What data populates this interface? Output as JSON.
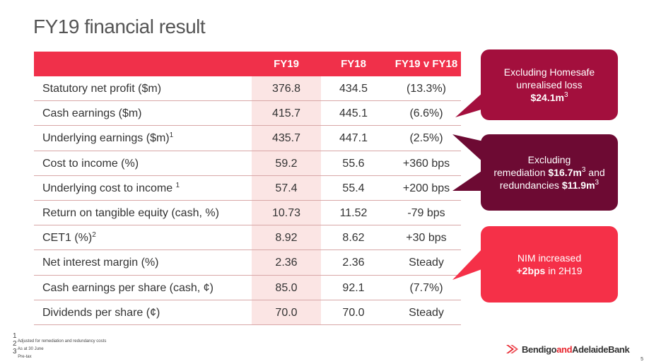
{
  "title": "FY19 financial result",
  "table": {
    "headers": [
      "",
      "FY19",
      "FY18",
      "FY19 v FY18"
    ],
    "rows": [
      {
        "label": "Statutory net profit ($m)",
        "sup": "",
        "fy19": "376.8",
        "fy18": "434.5",
        "change": "(13.3%)"
      },
      {
        "label": "Cash earnings ($m)",
        "sup": "",
        "fy19": "415.7",
        "fy18": "445.1",
        "change": "(6.6%)"
      },
      {
        "label": "Underlying earnings ($m)",
        "sup": "1",
        "fy19": "435.7",
        "fy18": "447.1",
        "change": "(2.5%)"
      },
      {
        "label": "Cost to income (%)",
        "sup": "",
        "fy19": "59.2",
        "fy18": "55.6",
        "change": "+360 bps"
      },
      {
        "label": "Underlying cost to income ",
        "sup": "1",
        "fy19": "57.4",
        "fy18": "55.4",
        "change": "+200 bps"
      },
      {
        "label": "Return on tangible equity (cash, %)",
        "sup": "",
        "fy19": "10.73",
        "fy18": "11.52",
        "change": "-79 bps"
      },
      {
        "label": "CET1 (%)",
        "sup": "2",
        "fy19": "8.92",
        "fy18": "8.62",
        "change": "+30 bps"
      },
      {
        "label": "Net interest margin (%)",
        "sup": "",
        "fy19": "2.36",
        "fy18": "2.36",
        "change": "Steady"
      },
      {
        "label": "Cash earnings per share (cash, ¢)",
        "sup": "",
        "fy19": "85.0",
        "fy18": "92.1",
        "change": "(7.7%)"
      },
      {
        "label": "Dividends per share (¢)",
        "sup": "",
        "fy19": "70.0",
        "fy18": "70.0",
        "change": "Steady"
      }
    ]
  },
  "callouts": {
    "homesafe": {
      "line1": "Excluding Homesafe",
      "line2": "unrealised loss",
      "value": "$24.1m",
      "sup": "3",
      "color": "#a30f3d"
    },
    "remediation": {
      "line1": "Excluding",
      "line2_pre": "remediation ",
      "value1": "$16.7m",
      "sup1": "3",
      "line2_post": " and",
      "line3_pre": "redundancies ",
      "value2": "$11.9m",
      "sup2": "3",
      "color": "#6d0a33"
    },
    "nim": {
      "line1": "NIM increased",
      "value": "+2bps",
      "line2_post": " in 2H19",
      "color": "#f53048"
    }
  },
  "footnotes": [
    {
      "num": "1",
      "text": "Adjusted for remediation and redundancy costs"
    },
    {
      "num": "2",
      "text": "As at 30 June"
    },
    {
      "num": "3",
      "text": "Pre-tax"
    }
  ],
  "logo": {
    "part1": "Bendigo",
    "part2": "and",
    "part3": "AdelaideBank"
  },
  "page_number": "5",
  "colors": {
    "header": "#f0304a",
    "fy19_column": "#fbe5e4",
    "row_rule": "#d8a7a7"
  }
}
